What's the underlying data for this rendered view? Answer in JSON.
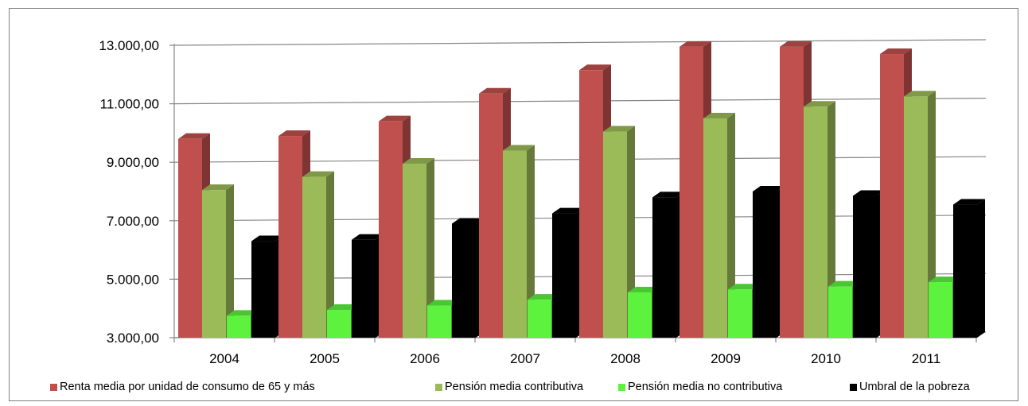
{
  "chart_data": {
    "type": "bar",
    "title": "",
    "xlabel": "",
    "ylabel": "",
    "categories": [
      "2004",
      "2005",
      "2006",
      "2007",
      "2008",
      "2009",
      "2010",
      "2011"
    ],
    "ylim": [
      3000,
      13000
    ],
    "yticks": [
      3000,
      5000,
      7000,
      9000,
      11000,
      13000
    ],
    "ytick_labels": [
      "3.000,00",
      "5.000,00",
      "7.000,00",
      "9.000,00",
      "11.000,00",
      "13.000,00"
    ],
    "grid": true,
    "legend_position": "bottom",
    "series": [
      {
        "name": "Renta media por unidad de consumo de 65 y más",
        "color": "#c0504d",
        "values": [
          9800,
          9900,
          10400,
          11350,
          12150,
          12950,
          12950,
          12700
        ]
      },
      {
        "name": "Pensión media contributiva",
        "color": "#9bbb59",
        "values": [
          8050,
          8500,
          8950,
          9400,
          10050,
          10500,
          10900,
          11250
        ]
      },
      {
        "name": "Pensión media no contributiva",
        "color": "#5cf23e",
        "values": [
          3750,
          3950,
          4100,
          4300,
          4550,
          4650,
          4750,
          4900
        ]
      },
      {
        "name": "Umbral de la pobreza",
        "color": "#000000",
        "values": [
          6300,
          6350,
          6900,
          7250,
          7800,
          8000,
          7850,
          7550
        ]
      }
    ]
  }
}
